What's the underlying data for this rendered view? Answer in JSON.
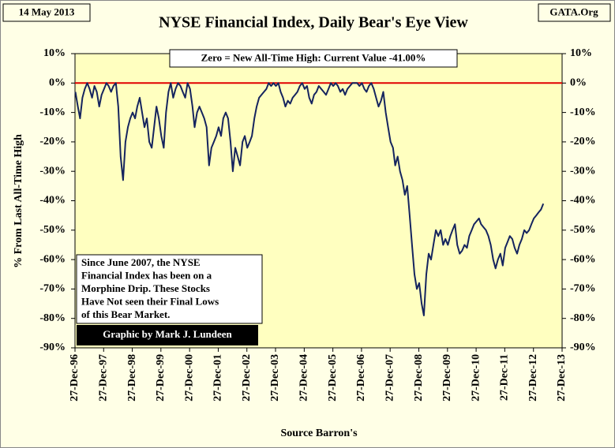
{
  "chart_data": {
    "type": "line",
    "title": "NYSE Financial Index, Daily Bear's Eye View",
    "date_label": "14 May 2013",
    "source_site": "GATA.Org",
    "subtitle": "Zero = New All-Time High: Current Value  -41.00%",
    "y_label": "% From Last All-Time High",
    "x_label": "Source Barron's",
    "annotation": [
      "Since June 2007, the NYSE",
      "Financial Index has been on a",
      "Morphine Drip. These Stocks",
      "Have Not seen their Final Lows",
      "of this Bear Market."
    ],
    "credit": "Graphic by Mark J. Lundeen",
    "reference_line": {
      "value": 0,
      "color": "#e00000"
    },
    "x": [
      "1997-01",
      "1997-02",
      "1997-03",
      "1997-04",
      "1997-05",
      "1997-06",
      "1997-07",
      "1997-08",
      "1997-09",
      "1997-10",
      "1997-11",
      "1997-12",
      "1998-01",
      "1998-02",
      "1998-03",
      "1998-04",
      "1998-05",
      "1998-06",
      "1998-07",
      "1998-08",
      "1998-09",
      "1998-10",
      "1998-11",
      "1998-12",
      "1999-01",
      "1999-02",
      "1999-03",
      "1999-04",
      "1999-05",
      "1999-06",
      "1999-07",
      "1999-08",
      "1999-09",
      "1999-10",
      "1999-11",
      "1999-12",
      "2000-01",
      "2000-02",
      "2000-03",
      "2000-04",
      "2000-05",
      "2000-06",
      "2000-07",
      "2000-08",
      "2000-09",
      "2000-10",
      "2000-11",
      "2000-12",
      "2001-01",
      "2001-02",
      "2001-03",
      "2001-04",
      "2001-05",
      "2001-06",
      "2001-07",
      "2001-08",
      "2001-09",
      "2001-10",
      "2001-11",
      "2001-12",
      "2002-01",
      "2002-02",
      "2002-03",
      "2002-04",
      "2002-05",
      "2002-06",
      "2002-07",
      "2002-08",
      "2002-09",
      "2002-10",
      "2002-11",
      "2002-12",
      "2003-01",
      "2003-02",
      "2003-03",
      "2003-04",
      "2003-05",
      "2003-06",
      "2003-07",
      "2003-08",
      "2003-09",
      "2003-10",
      "2003-11",
      "2003-12",
      "2004-01",
      "2004-02",
      "2004-03",
      "2004-04",
      "2004-05",
      "2004-06",
      "2004-07",
      "2004-08",
      "2004-09",
      "2004-10",
      "2004-11",
      "2004-12",
      "2005-01",
      "2005-02",
      "2005-03",
      "2005-04",
      "2005-05",
      "2005-06",
      "2005-07",
      "2005-08",
      "2005-09",
      "2005-10",
      "2005-11",
      "2005-12",
      "2006-01",
      "2006-02",
      "2006-03",
      "2006-04",
      "2006-05",
      "2006-06",
      "2006-07",
      "2006-08",
      "2006-09",
      "2006-10",
      "2006-11",
      "2006-12",
      "2007-01",
      "2007-02",
      "2007-03",
      "2007-04",
      "2007-05",
      "2007-06",
      "2007-07",
      "2007-08",
      "2007-09",
      "2007-10",
      "2007-11",
      "2007-12",
      "2008-01",
      "2008-02",
      "2008-03",
      "2008-04",
      "2008-05",
      "2008-06",
      "2008-07",
      "2008-08",
      "2008-09",
      "2008-10",
      "2008-11",
      "2008-12",
      "2009-01",
      "2009-02",
      "2009-03",
      "2009-04",
      "2009-05",
      "2009-06",
      "2009-07",
      "2009-08",
      "2009-09",
      "2009-10",
      "2009-11",
      "2009-12",
      "2010-01",
      "2010-02",
      "2010-03",
      "2010-04",
      "2010-05",
      "2010-06",
      "2010-07",
      "2010-08",
      "2010-09",
      "2010-10",
      "2010-11",
      "2010-12",
      "2011-01",
      "2011-02",
      "2011-03",
      "2011-04",
      "2011-05",
      "2011-06",
      "2011-07",
      "2011-08",
      "2011-09",
      "2011-10",
      "2011-11",
      "2011-12",
      "2012-01",
      "2012-02",
      "2012-03",
      "2012-04",
      "2012-05",
      "2012-06",
      "2012-07",
      "2012-08",
      "2012-09",
      "2012-10",
      "2012-11",
      "2012-12",
      "2013-01",
      "2013-02",
      "2013-03",
      "2013-04",
      "2013-05"
    ],
    "series": [
      {
        "color": "#15245e",
        "values": [
          -3,
          -8,
          -12,
          -5,
          -2,
          0,
          -2,
          -5,
          -1,
          -3,
          -8,
          -4,
          -2,
          0,
          -1,
          -3,
          -1,
          0,
          -8,
          -25,
          -33,
          -20,
          -15,
          -12,
          -10,
          -12,
          -8,
          -5,
          -10,
          -15,
          -12,
          -20,
          -22,
          -15,
          -8,
          -12,
          -18,
          -22,
          -10,
          -3,
          0,
          -5,
          -2,
          0,
          -1,
          -3,
          -5,
          0,
          -2,
          -8,
          -15,
          -10,
          -8,
          -10,
          -12,
          -15,
          -28,
          -22,
          -20,
          -18,
          -15,
          -18,
          -12,
          -10,
          -12,
          -20,
          -30,
          -22,
          -25,
          -28,
          -20,
          -18,
          -22,
          -20,
          -18,
          -12,
          -8,
          -5,
          -4,
          -3,
          -2,
          0,
          -1,
          0,
          -1,
          0,
          -3,
          -5,
          -8,
          -6,
          -7,
          -5,
          -4,
          -3,
          -1,
          0,
          -2,
          -1,
          -5,
          -7,
          -4,
          -3,
          -1,
          -2,
          -3,
          -4,
          -2,
          0,
          -1,
          0,
          -1,
          -3,
          -2,
          -4,
          -2,
          -1,
          0,
          0,
          0,
          -1,
          0,
          -2,
          -3,
          -1,
          0,
          -2,
          -5,
          -8,
          -6,
          -3,
          -10,
          -15,
          -20,
          -22,
          -28,
          -25,
          -30,
          -33,
          -38,
          -35,
          -45,
          -55,
          -65,
          -70,
          -68,
          -75,
          -79,
          -65,
          -58,
          -60,
          -55,
          -50,
          -52,
          -50,
          -55,
          -53,
          -55,
          -52,
          -50,
          -48,
          -55,
          -58,
          -57,
          -55,
          -56,
          -52,
          -50,
          -48,
          -47,
          -46,
          -48,
          -49,
          -50,
          -52,
          -55,
          -60,
          -63,
          -60,
          -58,
          -62,
          -56,
          -54,
          -52,
          -53,
          -56,
          -58,
          -55,
          -53,
          -50,
          -51,
          -50,
          -48,
          -46,
          -45,
          -44,
          -43,
          -41
        ]
      }
    ],
    "ylim": [
      -90,
      10
    ],
    "yticks": [
      {
        "value": 10,
        "label": "10%"
      },
      {
        "value": 0,
        "label": "0%"
      },
      {
        "value": -10,
        "label": "-10%"
      },
      {
        "value": -20,
        "label": "-20%"
      },
      {
        "value": -30,
        "label": "-30%"
      },
      {
        "value": -40,
        "label": "-40%"
      },
      {
        "value": -50,
        "label": "-50%"
      },
      {
        "value": -60,
        "label": "-60%"
      },
      {
        "value": -70,
        "label": "-70%"
      },
      {
        "value": -80,
        "label": "-80%"
      },
      {
        "value": -90,
        "label": "-90%"
      }
    ],
    "y2lim": [
      -90,
      10
    ],
    "y2ticks": [
      {
        "value": 10,
        "label": "10%"
      },
      {
        "value": 0,
        "label": "0%"
      },
      {
        "value": -10,
        "label": "-10%"
      },
      {
        "value": -20,
        "label": "-20%"
      },
      {
        "value": -30,
        "label": "-30%"
      },
      {
        "value": -40,
        "label": "-40%"
      },
      {
        "value": -50,
        "label": "-50%"
      },
      {
        "value": -60,
        "label": "-60%"
      },
      {
        "value": -70,
        "label": "-70%"
      },
      {
        "value": -80,
        "label": "-80%"
      },
      {
        "value": -90,
        "label": "-90%"
      }
    ],
    "xlim": [
      "1996-12-27",
      "2013-12-27"
    ],
    "xticks": [
      {
        "value": "1996-12-27",
        "label": "27-Dec-96"
      },
      {
        "value": "1997-12-27",
        "label": "27-Dec-97"
      },
      {
        "value": "1998-12-27",
        "label": "27-Dec-98"
      },
      {
        "value": "1999-12-27",
        "label": "27-Dec-99"
      },
      {
        "value": "2000-12-27",
        "label": "27-Dec-00"
      },
      {
        "value": "2001-12-27",
        "label": "27-Dec-01"
      },
      {
        "value": "2002-12-27",
        "label": "27-Dec-02"
      },
      {
        "value": "2003-12-27",
        "label": "27-Dec-03"
      },
      {
        "value": "2004-12-27",
        "label": "27-Dec-04"
      },
      {
        "value": "2005-12-27",
        "label": "27-Dec-05"
      },
      {
        "value": "2006-12-27",
        "label": "27-Dec-06"
      },
      {
        "value": "2007-12-27",
        "label": "27-Dec-07"
      },
      {
        "value": "2008-12-27",
        "label": "27-Dec-08"
      },
      {
        "value": "2009-12-27",
        "label": "27-Dec-09"
      },
      {
        "value": "2010-12-27",
        "label": "27-Dec-10"
      },
      {
        "value": "2011-12-27",
        "label": "27-Dec-11"
      },
      {
        "value": "2012-12-27",
        "label": "27-Dec-12"
      },
      {
        "value": "2013-12-27",
        "label": "27-Dec-13"
      }
    ],
    "grid": false
  }
}
